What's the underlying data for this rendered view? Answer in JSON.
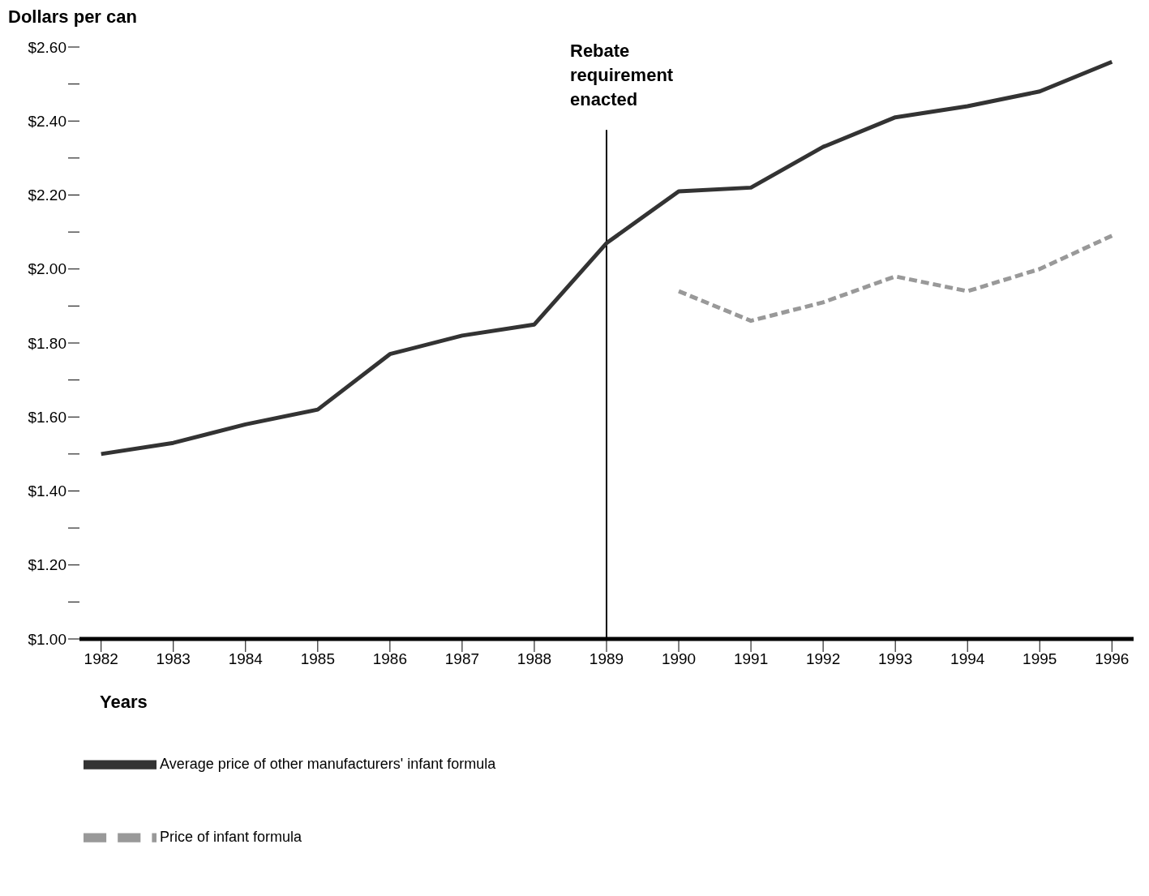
{
  "chart_data": {
    "type": "line",
    "ylabel": "Dollars per can",
    "xlabel": "Years",
    "categories": [
      "1982",
      "1983",
      "1984",
      "1985",
      "1986",
      "1987",
      "1988",
      "1989",
      "1990",
      "1991",
      "1992",
      "1993",
      "1994",
      "1995",
      "1996"
    ],
    "series": [
      {
        "name": "Average price of other manufacturers' infant formula",
        "color": "#333333",
        "line_style": "solid",
        "values": [
          1.5,
          1.53,
          1.58,
          1.62,
          1.77,
          1.82,
          1.85,
          2.07,
          2.21,
          2.22,
          2.33,
          2.41,
          2.44,
          2.48,
          2.56
        ]
      },
      {
        "name": "Price of infant formula",
        "color": "#999999",
        "line_style": "dashed",
        "values": [
          null,
          null,
          null,
          null,
          null,
          null,
          null,
          null,
          1.94,
          1.86,
          1.91,
          1.98,
          1.94,
          2.0,
          2.09
        ]
      }
    ],
    "ylim": [
      1.0,
      2.6
    ],
    "yticks": [
      {
        "value": 1.0,
        "label": "$1.00"
      },
      {
        "value": 1.1,
        "label": null
      },
      {
        "value": 1.2,
        "label": "$1.20"
      },
      {
        "value": 1.3,
        "label": null
      },
      {
        "value": 1.4,
        "label": "$1.40"
      },
      {
        "value": 1.5,
        "label": null
      },
      {
        "value": 1.6,
        "label": "$1.60"
      },
      {
        "value": 1.7,
        "label": null
      },
      {
        "value": 1.8,
        "label": "$1.80"
      },
      {
        "value": 1.9,
        "label": null
      },
      {
        "value": 2.0,
        "label": "$2.00"
      },
      {
        "value": 2.1,
        "label": null
      },
      {
        "value": 2.2,
        "label": "$2.20"
      },
      {
        "value": 2.3,
        "label": null
      },
      {
        "value": 2.4,
        "label": "$2.40"
      },
      {
        "value": 2.5,
        "label": null
      },
      {
        "value": 2.6,
        "label": "$2.60"
      }
    ],
    "ref_lines": [
      {
        "axis": "x",
        "value": "1989",
        "label": "Rebate requirement enacted",
        "color": "#000000"
      }
    ],
    "grid": false,
    "marker": "none",
    "legend": "bottom"
  }
}
